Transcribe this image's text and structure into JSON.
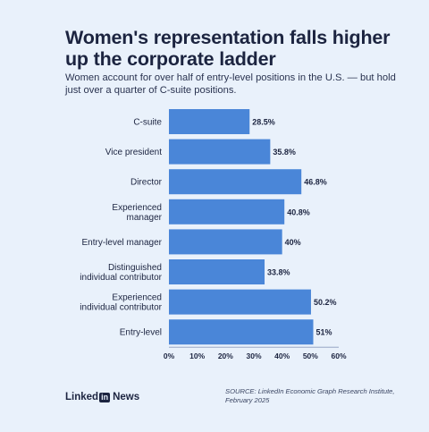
{
  "title": "Women's representation falls higher up the corporate ladder",
  "subtitle": "Women account for over half of entry-level positions in the U.S. — but hold just over a quarter of C-suite positions.",
  "chart_data": {
    "type": "bar",
    "orientation": "horizontal",
    "categories": [
      [
        "C-suite"
      ],
      [
        "Vice president"
      ],
      [
        "Director"
      ],
      [
        "Experienced",
        "manager"
      ],
      [
        "Entry-level manager"
      ],
      [
        "Distinguished",
        "individual contributor"
      ],
      [
        "Experienced",
        "individual contributor"
      ],
      [
        "Entry-level"
      ]
    ],
    "values": [
      28.5,
      35.8,
      46.8,
      40.8,
      40,
      33.8,
      50.2,
      51
    ],
    "value_labels": [
      "28.5%",
      "35.8%",
      "46.8%",
      "40.8%",
      "40%",
      "33.8%",
      "50.2%",
      "51%"
    ],
    "xlim": [
      0,
      60
    ],
    "xticks": [
      0,
      10,
      20,
      30,
      40,
      50,
      60
    ],
    "xtick_labels": [
      "0%",
      "10%",
      "20%",
      "30%",
      "40%",
      "50%",
      "60%"
    ],
    "grid": false,
    "bar_color": "#4a86d8"
  },
  "footer": {
    "brand_left": "Linked",
    "brand_in": "in",
    "brand_right": "News",
    "source": "SOURCE: LinkedIn Economic Graph Research Institute, February 2025"
  },
  "colors": {
    "background": "#e9f1fb",
    "text": "#1c2440",
    "bar": "#4a86d8"
  }
}
